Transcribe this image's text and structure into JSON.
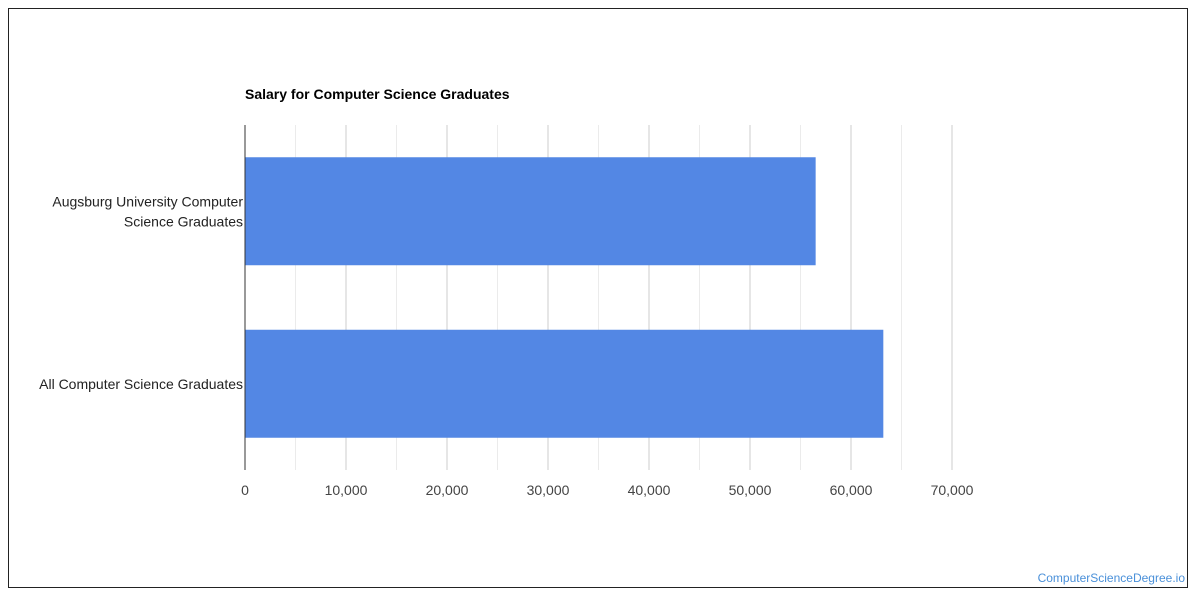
{
  "watermark": "ComputerScienceDegree.io",
  "colors": {
    "bar": "#5387e4",
    "grid_major": "#cccccc",
    "grid_minor": "#ebebeb",
    "axis": "#333333"
  },
  "chart_data": {
    "type": "bar",
    "orientation": "horizontal",
    "title": "Salary for Computer Science Graduates",
    "categories": [
      [
        "Augsburg University Computer",
        "Science Graduates"
      ],
      [
        "All Computer Science Graduates"
      ]
    ],
    "values": [
      56500,
      63200
    ],
    "xlim": [
      0,
      70000
    ],
    "ticks": [
      0,
      10000,
      20000,
      30000,
      40000,
      50000,
      60000,
      70000
    ],
    "tick_labels": [
      "0",
      "10,000",
      "20,000",
      "30,000",
      "40,000",
      "50,000",
      "60,000",
      "70,000"
    ],
    "grid": true,
    "legend": "none"
  }
}
